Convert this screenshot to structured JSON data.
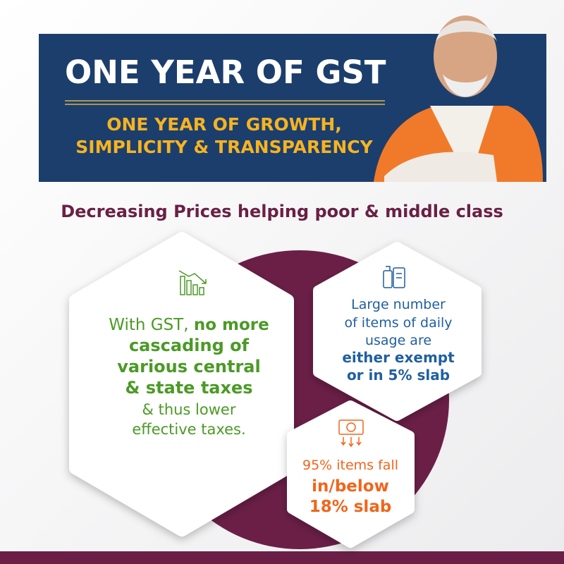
{
  "header": {
    "title": "ONE YEAR OF GST",
    "subtitle": [
      "ONE YEAR OF GROWTH,",
      "SIMPLICITY & TRANSPARENCY"
    ]
  },
  "heading": "Decreasing Prices helping poor & middle class",
  "cards": [
    {
      "color": "#4b9a26",
      "lines": [
        [
          {
            "text": "With GST, ",
            "strong": false
          },
          {
            "text": "no more",
            "strong": true
          }
        ],
        [
          {
            "text": "cascading of",
            "strong": true
          }
        ],
        [
          {
            "text": "various central",
            "strong": true
          }
        ],
        [
          {
            "text": "& state taxes",
            "strong": true
          }
        ],
        [
          {
            "text": "& thus lower",
            "strong": false
          }
        ],
        [
          {
            "text": "effective taxes.",
            "strong": false
          }
        ]
      ]
    },
    {
      "color": "#1f5f9f",
      "lines": [
        [
          {
            "text": "Large number",
            "strong": false
          }
        ],
        [
          {
            "text": "of items of daily",
            "strong": false
          }
        ],
        [
          {
            "text": "usage are",
            "strong": false
          }
        ],
        [
          {
            "text": "either exempt",
            "strong": true
          }
        ],
        [
          {
            "text": "or in 5% slab",
            "strong": true
          }
        ]
      ]
    },
    {
      "color": "#f0661c",
      "lines": [
        [
          {
            "text": "95% items fall",
            "strong": false
          }
        ],
        [
          {
            "text": "in/below",
            "strong": true
          }
        ],
        [
          {
            "text": "18% slab",
            "strong": true
          }
        ]
      ]
    }
  ]
}
